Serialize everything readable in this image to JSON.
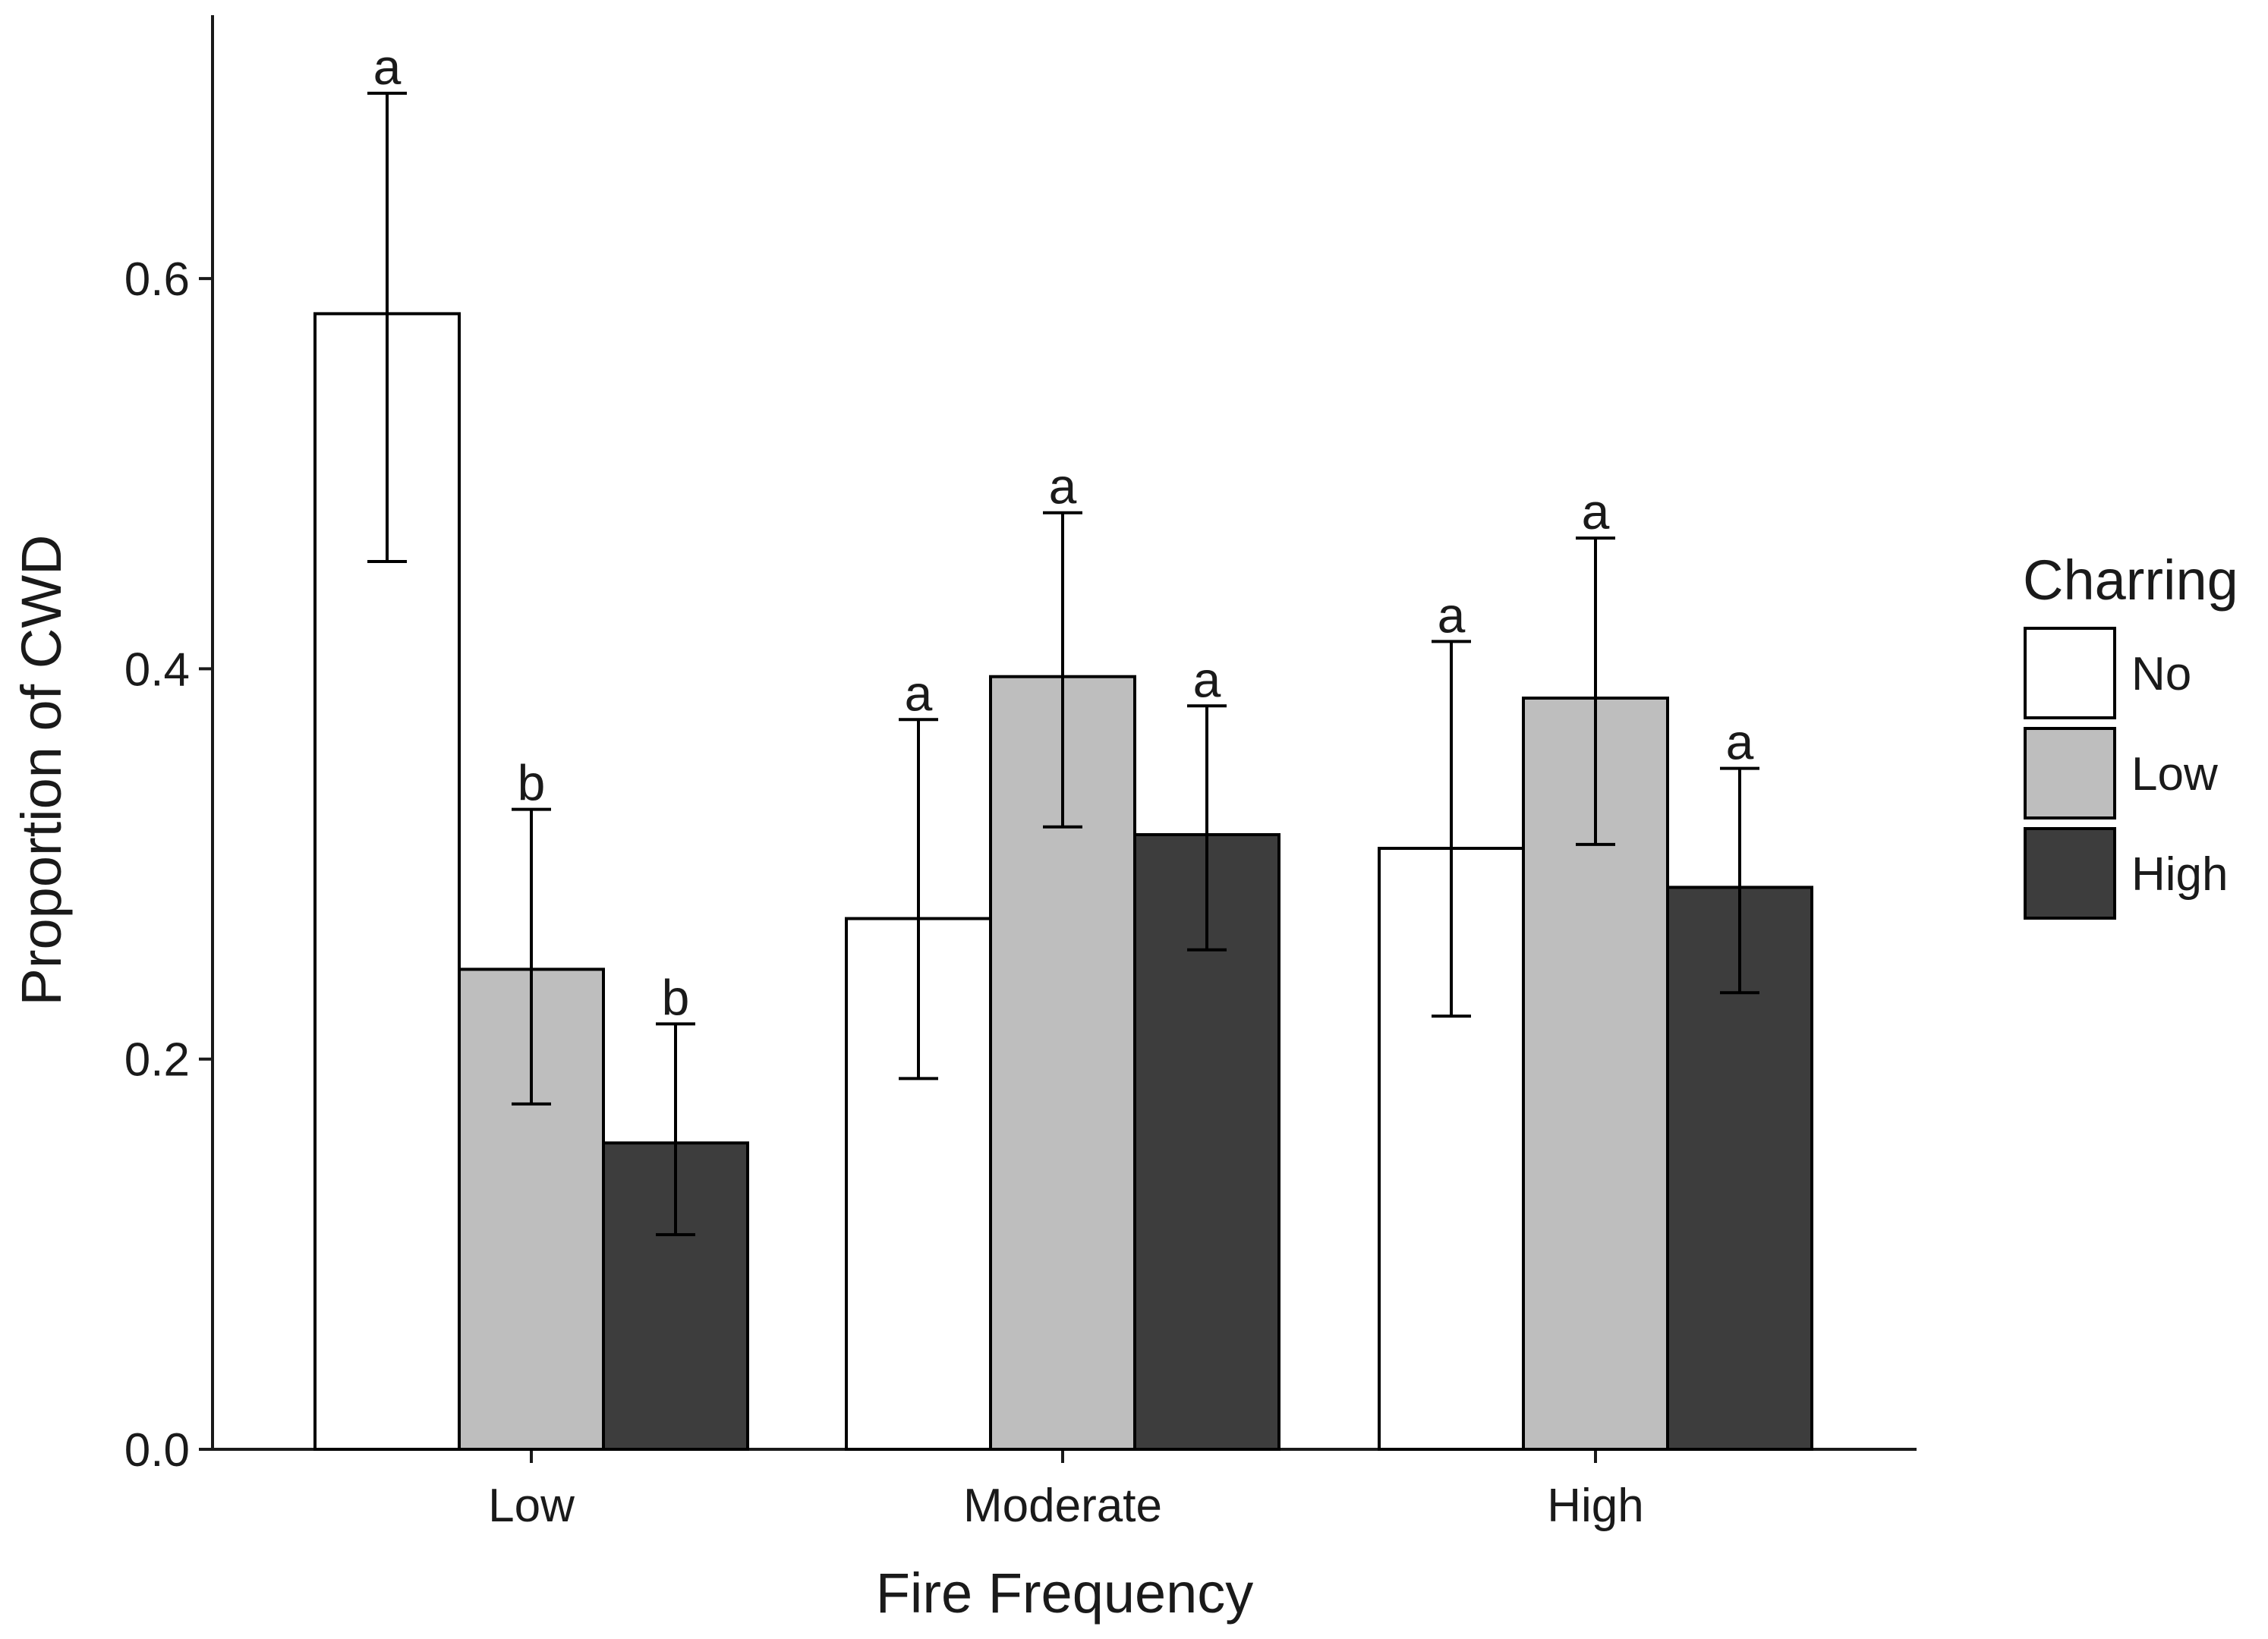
{
  "chart_data": {
    "type": "bar",
    "title": "",
    "xlabel": "Fire Frequency",
    "ylabel": "Proportion of CWD",
    "categories": [
      "Low",
      "Moderate",
      "High"
    ],
    "yticks": [
      "0.0",
      "0.2",
      "0.4",
      "0.6"
    ],
    "ylim": [
      0,
      0.735
    ],
    "grid": false,
    "legend": {
      "title": "Charring",
      "position": "right"
    },
    "series": [
      {
        "name": "No",
        "color": "#ffffff",
        "values": [
          0.582,
          0.272,
          0.308
        ],
        "error_low": [
          0.455,
          0.19,
          0.222
        ],
        "error_high": [
          0.695,
          0.374,
          0.414
        ],
        "letters": [
          "a",
          "a",
          "a"
        ]
      },
      {
        "name": "Low",
        "color": "#bebebe",
        "values": [
          0.246,
          0.396,
          0.385
        ],
        "error_low": [
          0.177,
          0.319,
          0.31
        ],
        "error_high": [
          0.328,
          0.48,
          0.467
        ],
        "letters": [
          "b",
          "a",
          "a"
        ]
      },
      {
        "name": "High",
        "color": "#3d3d3d",
        "values": [
          0.157,
          0.315,
          0.288
        ],
        "error_low": [
          0.11,
          0.256,
          0.234
        ],
        "error_high": [
          0.218,
          0.381,
          0.349
        ],
        "letters": [
          "b",
          "a",
          "a"
        ]
      }
    ]
  }
}
